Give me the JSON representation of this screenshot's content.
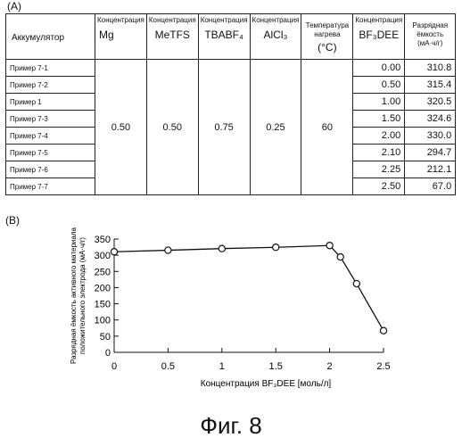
{
  "panel_a_label": "(A)",
  "panel_b_label": "(B)",
  "table": {
    "headers": {
      "battery": "Аккумулятор",
      "mg_top": "Концентрация",
      "mg_bottom": "Mg",
      "metfs_top": "Концентрация",
      "metfs_bottom": "MeTFS",
      "tbabf_top": "Концентрация",
      "tbabf_bottom": "TBABF₄",
      "alcl_top": "Концентрация",
      "alcl_bottom": "AlCl₃",
      "temp_top": "Температура нагрева",
      "temp_bottom": "(°C)",
      "bf_top": "Концентрация",
      "bf_bottom": "BF₃DEE",
      "cap_top": "Разрядная ёмкость (мА·ч/г)"
    },
    "rows": [
      {
        "name": "Пример 7-1",
        "bf": "0.00",
        "cap": "310.8"
      },
      {
        "name": "Пример 7-2",
        "bf": "0.50",
        "cap": "315.4"
      },
      {
        "name": "Пример 1",
        "bf": "1.00",
        "cap": "320.5"
      },
      {
        "name": "Пример 7-3",
        "bf": "1.50",
        "cap": "324.6"
      },
      {
        "name": "Пример 7-4",
        "bf": "2.00",
        "cap": "330.0"
      },
      {
        "name": "Пример 7-5",
        "bf": "2.10",
        "cap": "294.7"
      },
      {
        "name": "Пример 7-6",
        "bf": "2.25",
        "cap": "212.1"
      },
      {
        "name": "Пример 7-7",
        "bf": "2.50",
        "cap": "67.0"
      }
    ],
    "merged": {
      "mg": "0.50",
      "metfs": "0.50",
      "tbabf": "0.75",
      "alcl": "0.25",
      "temp": "60"
    }
  },
  "chart_data": {
    "type": "line",
    "x": [
      0.0,
      0.5,
      1.0,
      1.5,
      2.0,
      2.1,
      2.25,
      2.5
    ],
    "series": [
      {
        "values": [
          310.8,
          315.4,
          320.5,
          324.6,
          330.0,
          294.7,
          212.1,
          67.0
        ]
      }
    ],
    "xlabel": "Концентрация BF₃DEE [моль/л]",
    "ylabel": "Разрядная ёмкость активного материала положительного электрода (мА·ч/г)",
    "xlim": [
      0,
      2.5
    ],
    "ylim": [
      0,
      350
    ],
    "xticks": [
      "0",
      "0.5",
      "1",
      "1.5",
      "2",
      "2.5"
    ],
    "yticks": [
      "0",
      "50",
      "100",
      "150",
      "200",
      "250",
      "300",
      "350"
    ],
    "grid": false,
    "marker": "open-circle"
  },
  "caption": "Фиг. 8"
}
